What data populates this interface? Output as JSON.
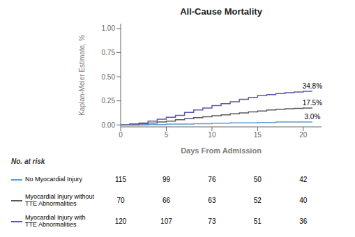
{
  "chart_data": {
    "type": "step",
    "title": "All-Cause Mortality",
    "x_label": "Days From Admission",
    "y_label": "Kaplan-Meier Estimate, %",
    "xlim": [
      0,
      22
    ],
    "ylim": [
      -0.02,
      1.05
    ],
    "xticks": [
      0,
      5,
      10,
      15,
      20
    ],
    "yticks": [
      {
        "value": 0.0,
        "label": "0.00"
      },
      0.25,
      {
        "value": 0.5,
        "label": "0.50"
      },
      0.75,
      {
        "value": 1.0,
        "label": "1.00"
      }
    ],
    "grid": false,
    "x": [
      0,
      1,
      2,
      3,
      4,
      5,
      6,
      7,
      8,
      9,
      10,
      11,
      12,
      13,
      14,
      15,
      16,
      17,
      18,
      19,
      20,
      21
    ],
    "at_risk_header": "No. at risk",
    "at_risk_x": [
      0,
      5,
      10,
      15,
      20
    ],
    "series": [
      {
        "name": "No Myocardial Injury",
        "color": "#5b9bd5",
        "values": [
          0,
          0,
          0,
          0.004,
          0.004,
          0.009,
          0.009,
          0.009,
          0.013,
          0.013,
          0.018,
          0.018,
          0.022,
          0.022,
          0.022,
          0.026,
          0.026,
          0.03,
          0.03,
          0.03,
          0.03,
          0.03
        ],
        "end_label": "3.0%",
        "at_risk": [
          115,
          99,
          76,
          50,
          42
        ]
      },
      {
        "name": "Myocardial Injury without\nTTE Abnormalities",
        "color": "#595959",
        "values": [
          0,
          0,
          0.01,
          0.02,
          0.03,
          0.04,
          0.055,
          0.065,
          0.075,
          0.085,
          0.095,
          0.105,
          0.115,
          0.125,
          0.135,
          0.145,
          0.155,
          0.162,
          0.168,
          0.172,
          0.175,
          0.175
        ],
        "end_label": "17.5%",
        "at_risk": [
          70,
          66,
          63,
          52,
          40
        ]
      },
      {
        "name": "Myocardial Injury with\nTTE Abnormalities",
        "color": "#5a5aaa",
        "values": [
          0,
          0.01,
          0.02,
          0.04,
          0.06,
          0.08,
          0.1,
          0.13,
          0.155,
          0.175,
          0.2,
          0.22,
          0.24,
          0.265,
          0.285,
          0.305,
          0.315,
          0.325,
          0.335,
          0.342,
          0.348,
          0.348
        ],
        "end_label": "34.8%",
        "at_risk": [
          120,
          107,
          73,
          51,
          36
        ]
      }
    ]
  }
}
